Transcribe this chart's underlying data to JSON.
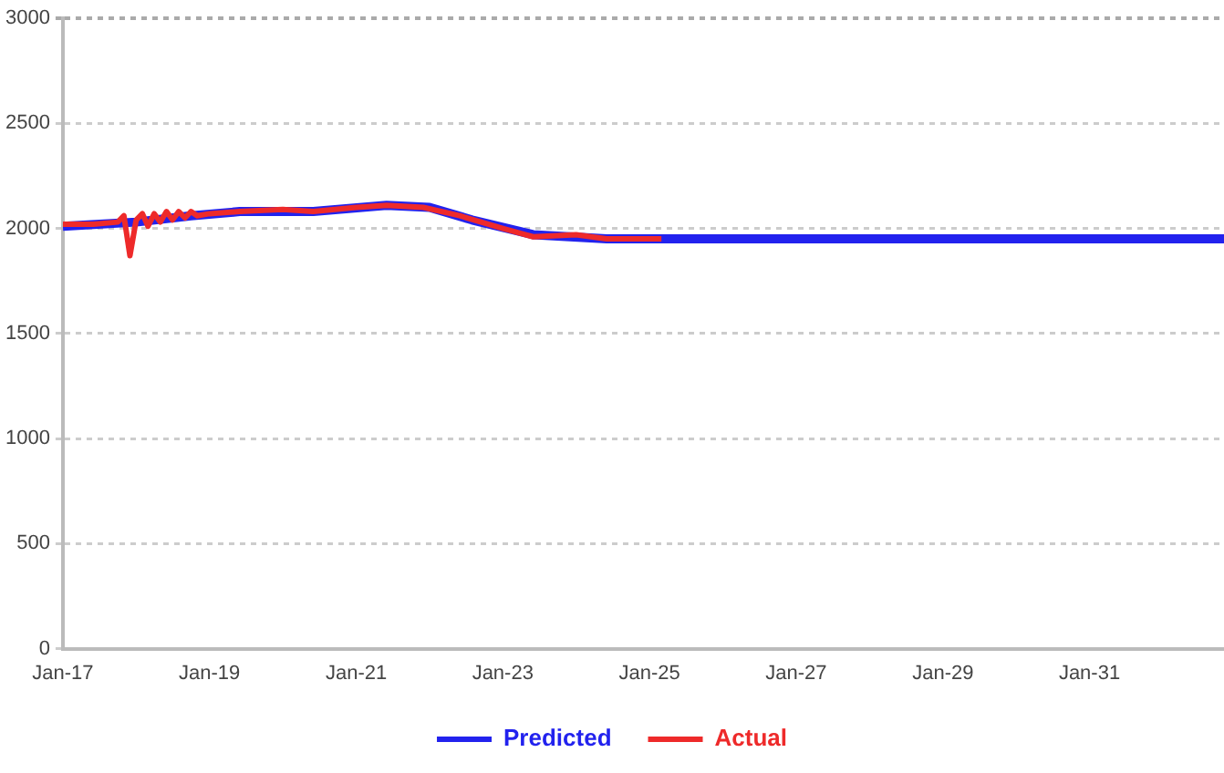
{
  "chart_data": {
    "type": "line",
    "xlim": [
      "2017-01",
      "2032-11"
    ],
    "ylim": [
      0,
      3000
    ],
    "xticks": [
      {
        "value": "2017-01",
        "label": "Jan-17"
      },
      {
        "value": "2019-01",
        "label": "Jan-19"
      },
      {
        "value": "2021-01",
        "label": "Jan-21"
      },
      {
        "value": "2023-01",
        "label": "Jan-23"
      },
      {
        "value": "2025-01",
        "label": "Jan-25"
      },
      {
        "value": "2027-01",
        "label": "Jan-27"
      },
      {
        "value": "2029-01",
        "label": "Jan-29"
      },
      {
        "value": "2031-01",
        "label": "Jan-31"
      }
    ],
    "yticks": [
      0,
      500,
      1000,
      1500,
      2000,
      2500,
      3000
    ],
    "grid": "y",
    "legend": "bottom",
    "marker": "none",
    "line_style": "solid",
    "series": [
      {
        "name": "Predicted",
        "color": "#2222ee",
        "x": [
          "2017-01",
          "2018-01",
          "2018-10",
          "2019-06",
          "2020-06",
          "2021-06",
          "2022-01",
          "2022-08",
          "2023-06",
          "2024-06",
          "2025-03",
          "2032-11"
        ],
        "values": [
          2010,
          2030,
          2060,
          2080,
          2080,
          2110,
          2100,
          2040,
          1970,
          1950,
          1950,
          1950
        ]
      },
      {
        "name": "Actual",
        "color": "#ee2a2a",
        "x": [
          "2017-01",
          "2017-06",
          "2017-10",
          "2017-11",
          "2017-12",
          "2018-01",
          "2018-02",
          "2018-03",
          "2018-04",
          "2018-05",
          "2018-06",
          "2018-07",
          "2018-08",
          "2018-09",
          "2018-10",
          "2018-11",
          "2019-01",
          "2019-06",
          "2020-01",
          "2020-06",
          "2021-01",
          "2021-06",
          "2021-12",
          "2022-06",
          "2023-01",
          "2023-06",
          "2024-01",
          "2024-06",
          "2025-03"
        ],
        "values": [
          2020,
          2020,
          2030,
          2060,
          1870,
          2040,
          2070,
          2010,
          2070,
          2030,
          2080,
          2040,
          2080,
          2050,
          2080,
          2060,
          2070,
          2080,
          2090,
          2080,
          2100,
          2110,
          2100,
          2060,
          2000,
          1960,
          1970,
          1950,
          1950
        ]
      }
    ]
  }
}
